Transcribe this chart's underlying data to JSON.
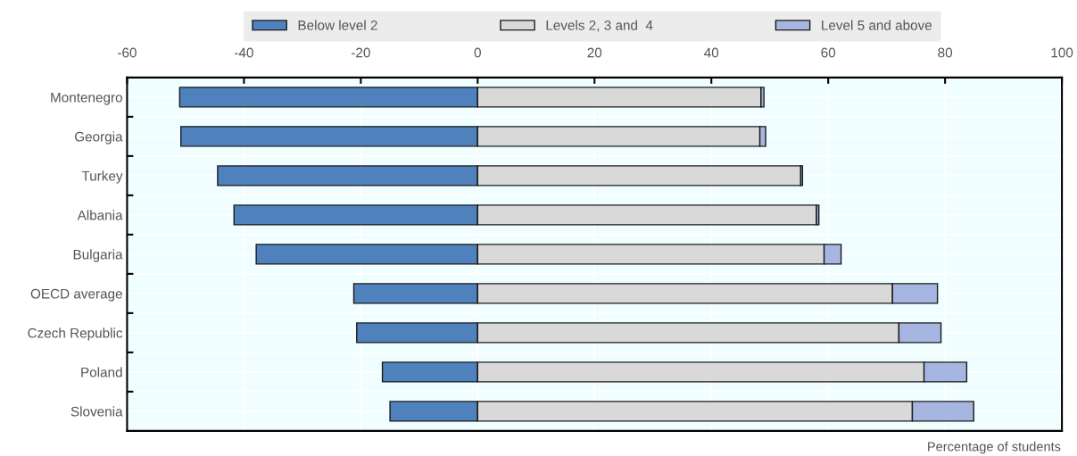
{
  "chart_data": {
    "type": "bar",
    "orientation": "horizontal",
    "stacked": true,
    "categories": [
      "Montenegro",
      "Georgia",
      "Turkey",
      "Albania",
      "Bulgaria",
      "OECD average",
      "Czech Republic",
      "Poland",
      "Slovenia"
    ],
    "series": [
      {
        "name": "Below level 2",
        "color": "#4f81bd",
        "values": [
          -51.0,
          -50.8,
          -44.5,
          -41.7,
          -37.9,
          -21.2,
          -20.7,
          -16.3,
          -15.0
        ]
      },
      {
        "name": "Levels 2, 3 and  4",
        "color": "#d9d9d9",
        "values": [
          48.5,
          48.3,
          55.3,
          58.0,
          59.3,
          71.0,
          72.1,
          76.4,
          74.4
        ]
      },
      {
        "name": "Level 5 and above",
        "color": "#a6b6e0",
        "values": [
          0.5,
          1.0,
          0.3,
          0.4,
          2.9,
          7.7,
          7.2,
          7.3,
          10.5
        ]
      }
    ],
    "xlim": [
      -60,
      100
    ],
    "xticks": [
      -60,
      -40,
      -20,
      0,
      20,
      40,
      60,
      80,
      100
    ],
    "grid": true,
    "legend": "top",
    "annotations": [
      "Percentage of students"
    ]
  }
}
